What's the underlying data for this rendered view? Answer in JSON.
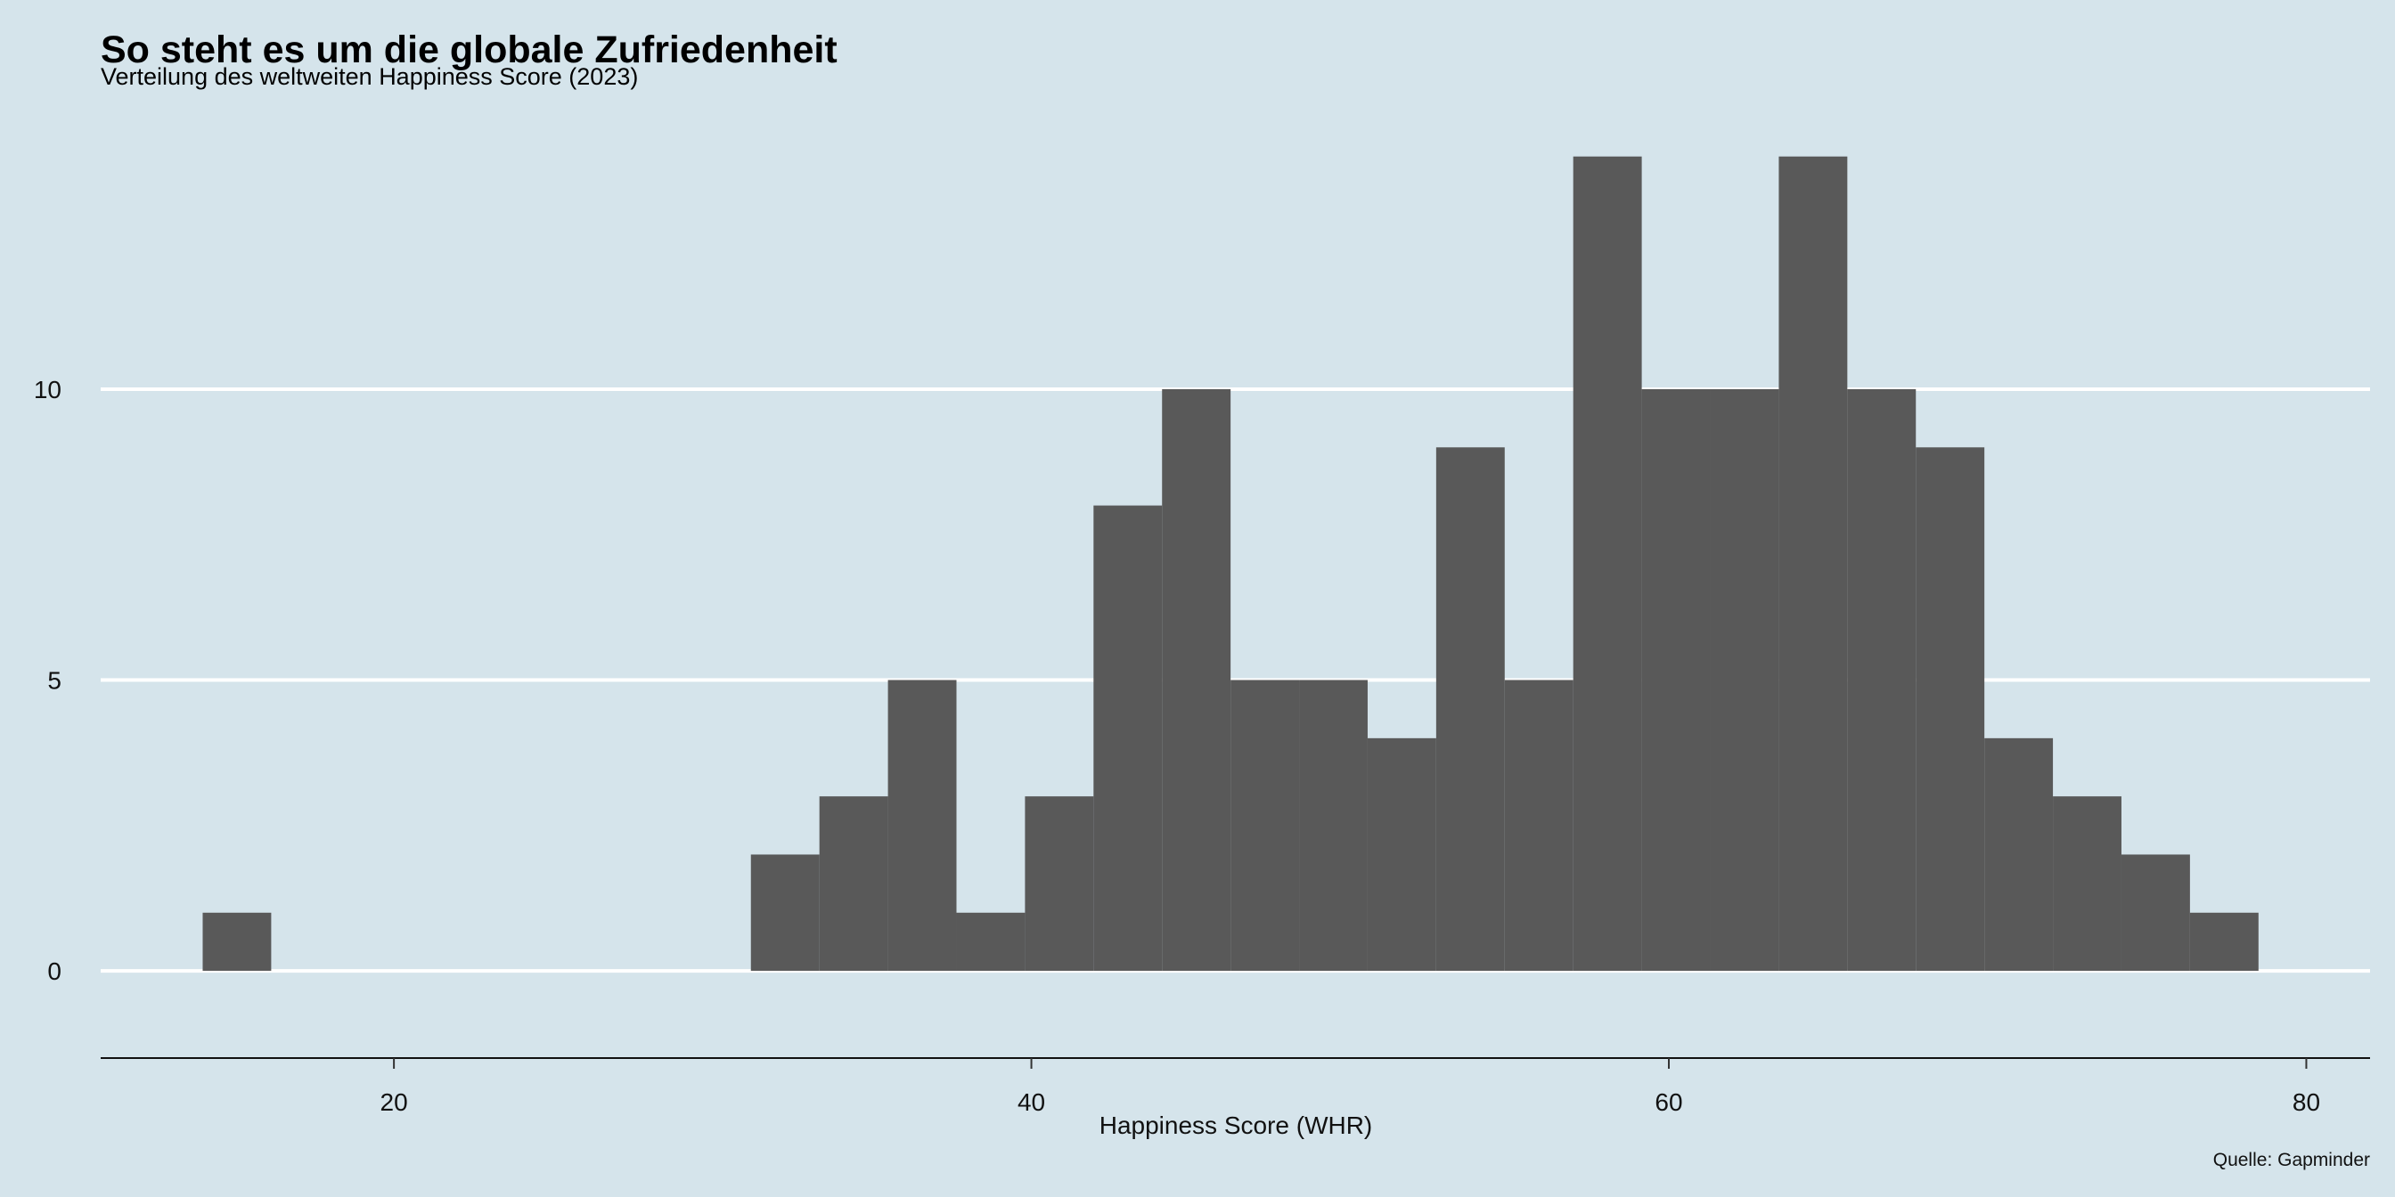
{
  "chart_data": {
    "type": "bar",
    "title": "So steht es um die globale Zufriedenheit",
    "subtitle": "Verteilung des weltweiten Happiness Score (2023)",
    "xlabel": "Happiness Score (WHR)",
    "ylabel": "",
    "caption": "Quelle: Gapminder",
    "bar_color": "#595959",
    "background_color": "#d5e4eb",
    "grid_color": "#ffffff",
    "grid": "horizontal-major",
    "xlim": [
      10.8,
      82.0
    ],
    "ylim": [
      -1.3,
      14.7
    ],
    "x_ticks": [
      20,
      40,
      60,
      80
    ],
    "y_ticks": [
      0,
      5,
      10
    ],
    "bins": [
      {
        "x0": 14.0,
        "x1": 16.15,
        "count": 1
      },
      {
        "x0": 31.2,
        "x1": 33.35,
        "count": 2
      },
      {
        "x0": 33.35,
        "x1": 35.5,
        "count": 3
      },
      {
        "x0": 35.5,
        "x1": 37.65,
        "count": 5
      },
      {
        "x0": 37.65,
        "x1": 39.8,
        "count": 1
      },
      {
        "x0": 39.8,
        "x1": 41.95,
        "count": 3
      },
      {
        "x0": 41.95,
        "x1": 44.1,
        "count": 8
      },
      {
        "x0": 44.1,
        "x1": 46.25,
        "count": 10
      },
      {
        "x0": 46.25,
        "x1": 48.4,
        "count": 5
      },
      {
        "x0": 48.4,
        "x1": 50.55,
        "count": 5
      },
      {
        "x0": 50.55,
        "x1": 52.7,
        "count": 4
      },
      {
        "x0": 52.7,
        "x1": 54.85,
        "count": 9
      },
      {
        "x0": 54.85,
        "x1": 57.0,
        "count": 5
      },
      {
        "x0": 57.0,
        "x1": 59.15,
        "count": 14
      },
      {
        "x0": 59.15,
        "x1": 61.3,
        "count": 10
      },
      {
        "x0": 61.3,
        "x1": 63.45,
        "count": 10
      },
      {
        "x0": 63.45,
        "x1": 65.6,
        "count": 14
      },
      {
        "x0": 65.6,
        "x1": 67.75,
        "count": 10
      },
      {
        "x0": 67.75,
        "x1": 69.9,
        "count": 9
      },
      {
        "x0": 69.9,
        "x1": 72.05,
        "count": 4
      },
      {
        "x0": 72.05,
        "x1": 74.2,
        "count": 3
      },
      {
        "x0": 74.2,
        "x1": 76.35,
        "count": 2
      },
      {
        "x0": 76.35,
        "x1": 78.5,
        "count": 1
      }
    ]
  }
}
